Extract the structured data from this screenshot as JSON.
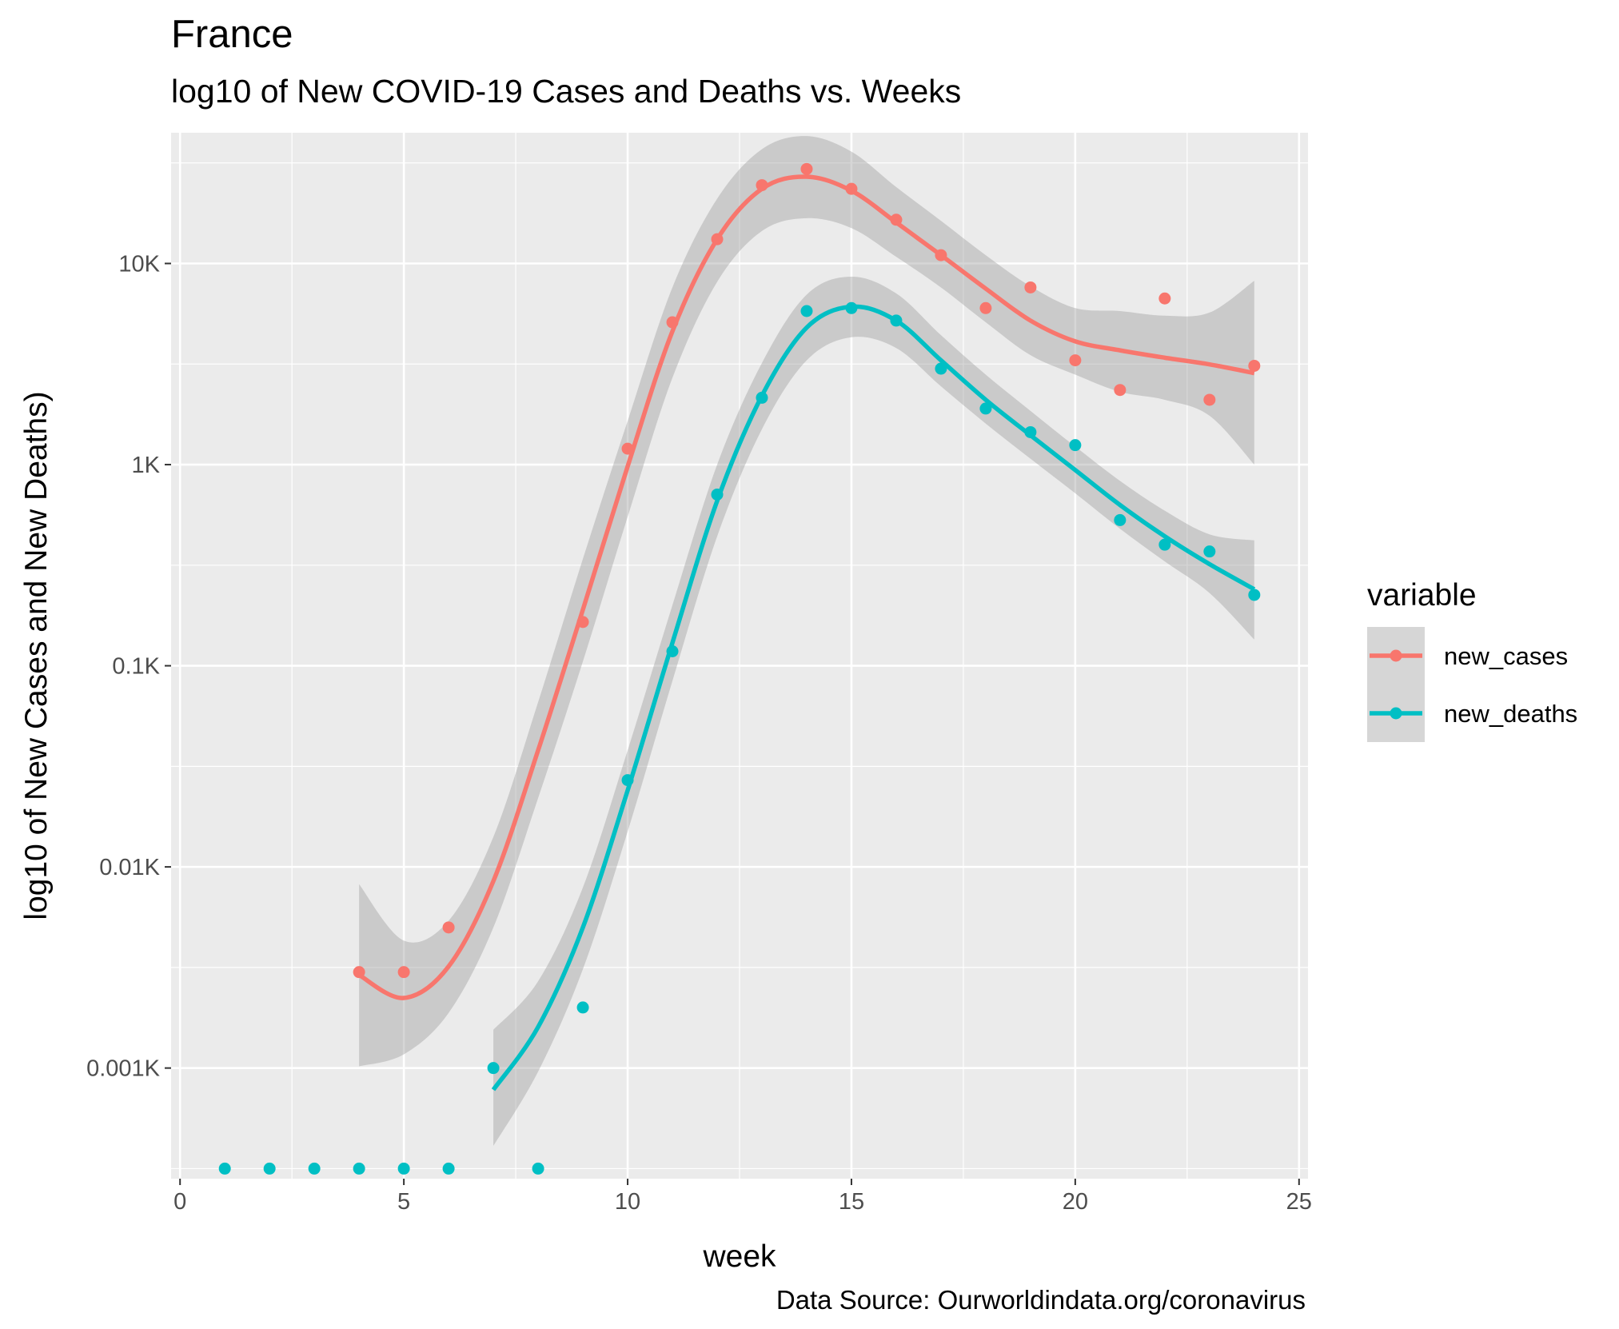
{
  "chart_data": {
    "type": "scatter",
    "title": "France",
    "subtitle": "log10 of New COVID-19 Cases and Deaths vs. Weeks",
    "xlabel": "week",
    "ylabel": "log10 of New Cases and New Deaths)",
    "caption": "Data Source: Ourworldindata.org/coronavirus",
    "xlim": [
      -0.2,
      25.2
    ],
    "ylim_log10": [
      -3.55,
      1.65
    ],
    "y_scale": "log10",
    "grid": true,
    "x_ticks": [
      0,
      5,
      10,
      15,
      20,
      25
    ],
    "x_tick_labels": [
      "0",
      "5",
      "10",
      "15",
      "20",
      "25"
    ],
    "y_ticks": [
      0.001,
      0.01,
      0.1,
      1,
      10
    ],
    "y_tick_labels": [
      "0.001K",
      "0.01K",
      "0.1K",
      "1K",
      "10K"
    ],
    "legend": {
      "title": "variable",
      "position": "right"
    },
    "series": [
      {
        "name": "new_cases",
        "color": "#F8766D",
        "points": [
          {
            "x": 4,
            "y": 0.003
          },
          {
            "x": 5,
            "y": 0.003
          },
          {
            "x": 6,
            "y": 0.005
          },
          {
            "x": 9,
            "y": 0.165
          },
          {
            "x": 10,
            "y": 1.2
          },
          {
            "x": 11,
            "y": 5.1
          },
          {
            "x": 12,
            "y": 13.2
          },
          {
            "x": 13,
            "y": 24.5
          },
          {
            "x": 14,
            "y": 29.5
          },
          {
            "x": 15,
            "y": 23.5
          },
          {
            "x": 16,
            "y": 16.5
          },
          {
            "x": 17,
            "y": 11.0
          },
          {
            "x": 18,
            "y": 6.0
          },
          {
            "x": 19,
            "y": 7.6
          },
          {
            "x": 20,
            "y": 3.3
          },
          {
            "x": 21,
            "y": 2.35
          },
          {
            "x": 22,
            "y": 6.7
          },
          {
            "x": 23,
            "y": 2.1
          },
          {
            "x": 24,
            "y": 3.1
          }
        ],
        "smooth": [
          {
            "x": 4,
            "y": 0.0029,
            "lo": 0.00102,
            "hi": 0.0082
          },
          {
            "x": 5,
            "y": 0.00223,
            "lo": 0.00117,
            "hi": 0.0043
          },
          {
            "x": 6,
            "y": 0.0032,
            "lo": 0.00188,
            "hi": 0.0054
          },
          {
            "x": 7,
            "y": 0.0085,
            "lo": 0.005,
            "hi": 0.0141
          },
          {
            "x": 8,
            "y": 0.038,
            "lo": 0.022,
            "hi": 0.066
          },
          {
            "x": 9,
            "y": 0.19,
            "lo": 0.105,
            "hi": 0.34
          },
          {
            "x": 10,
            "y": 0.98,
            "lo": 0.55,
            "hi": 1.65
          },
          {
            "x": 11,
            "y": 4.6,
            "lo": 2.7,
            "hi": 7.6
          },
          {
            "x": 12,
            "y": 13.2,
            "lo": 8.1,
            "hi": 21.0
          },
          {
            "x": 13,
            "y": 23.5,
            "lo": 14.5,
            "hi": 37.0
          },
          {
            "x": 14,
            "y": 27.0,
            "lo": 16.8,
            "hi": 43.0
          },
          {
            "x": 15,
            "y": 23.0,
            "lo": 15.0,
            "hi": 36.0
          },
          {
            "x": 16,
            "y": 16.0,
            "lo": 10.8,
            "hi": 24.0
          },
          {
            "x": 17,
            "y": 11.0,
            "lo": 7.6,
            "hi": 16.3
          },
          {
            "x": 18,
            "y": 7.5,
            "lo": 5.1,
            "hi": 11.0
          },
          {
            "x": 19,
            "y": 5.2,
            "lo": 3.5,
            "hi": 7.7
          },
          {
            "x": 20,
            "y": 4.1,
            "lo": 2.8,
            "hi": 6.0
          },
          {
            "x": 21,
            "y": 3.7,
            "lo": 2.3,
            "hi": 5.8
          },
          {
            "x": 22,
            "y": 3.4,
            "lo": 2.1,
            "hi": 5.5
          },
          {
            "x": 23,
            "y": 3.15,
            "lo": 1.75,
            "hi": 5.7
          },
          {
            "x": 24,
            "y": 2.85,
            "lo": 1.0,
            "hi": 8.2
          }
        ]
      },
      {
        "name": "new_deaths",
        "color": "#00BFC4",
        "points": [
          {
            "x": 1,
            "y": 0
          },
          {
            "x": 2,
            "y": 0
          },
          {
            "x": 3,
            "y": 0
          },
          {
            "x": 4,
            "y": 0
          },
          {
            "x": 5,
            "y": 0
          },
          {
            "x": 6,
            "y": 0
          },
          {
            "x": 8,
            "y": 0
          },
          {
            "x": 7,
            "y": 0.001
          },
          {
            "x": 9,
            "y": 0.002
          },
          {
            "x": 10,
            "y": 0.027
          },
          {
            "x": 11,
            "y": 0.118
          },
          {
            "x": 12,
            "y": 0.71
          },
          {
            "x": 13,
            "y": 2.15
          },
          {
            "x": 14,
            "y": 5.8
          },
          {
            "x": 15,
            "y": 6.0
          },
          {
            "x": 16,
            "y": 5.2
          },
          {
            "x": 17,
            "y": 3.0
          },
          {
            "x": 18,
            "y": 1.9
          },
          {
            "x": 19,
            "y": 1.45
          },
          {
            "x": 20,
            "y": 1.25
          },
          {
            "x": 21,
            "y": 0.53
          },
          {
            "x": 22,
            "y": 0.4
          },
          {
            "x": 23,
            "y": 0.37
          },
          {
            "x": 24,
            "y": 0.225
          }
        ],
        "smooth": [
          {
            "x": 7,
            "y": 0.00078,
            "lo": 0.00041,
            "hi": 0.00155
          },
          {
            "x": 8,
            "y": 0.0016,
            "lo": 0.00096,
            "hi": 0.0027
          },
          {
            "x": 9,
            "y": 0.005,
            "lo": 0.0031,
            "hi": 0.0079
          },
          {
            "x": 10,
            "y": 0.024,
            "lo": 0.015,
            "hi": 0.038
          },
          {
            "x": 11,
            "y": 0.13,
            "lo": 0.084,
            "hi": 0.2
          },
          {
            "x": 12,
            "y": 0.66,
            "lo": 0.44,
            "hi": 1.0
          },
          {
            "x": 13,
            "y": 2.2,
            "lo": 1.5,
            "hi": 3.2
          },
          {
            "x": 14,
            "y": 4.8,
            "lo": 3.3,
            "hi": 7.0
          },
          {
            "x": 15,
            "y": 6.1,
            "lo": 4.3,
            "hi": 8.6
          },
          {
            "x": 16,
            "y": 5.2,
            "lo": 3.8,
            "hi": 7.1
          },
          {
            "x": 17,
            "y": 3.3,
            "lo": 2.45,
            "hi": 4.4
          },
          {
            "x": 18,
            "y": 2.1,
            "lo": 1.6,
            "hi": 2.8
          },
          {
            "x": 19,
            "y": 1.4,
            "lo": 1.07,
            "hi": 1.85
          },
          {
            "x": 20,
            "y": 0.94,
            "lo": 0.72,
            "hi": 1.23
          },
          {
            "x": 21,
            "y": 0.63,
            "lo": 0.48,
            "hi": 0.83
          },
          {
            "x": 22,
            "y": 0.44,
            "lo": 0.33,
            "hi": 0.59
          },
          {
            "x": 23,
            "y": 0.32,
            "lo": 0.23,
            "hi": 0.45
          },
          {
            "x": 24,
            "y": 0.24,
            "lo": 0.135,
            "hi": 0.42
          }
        ]
      }
    ]
  }
}
